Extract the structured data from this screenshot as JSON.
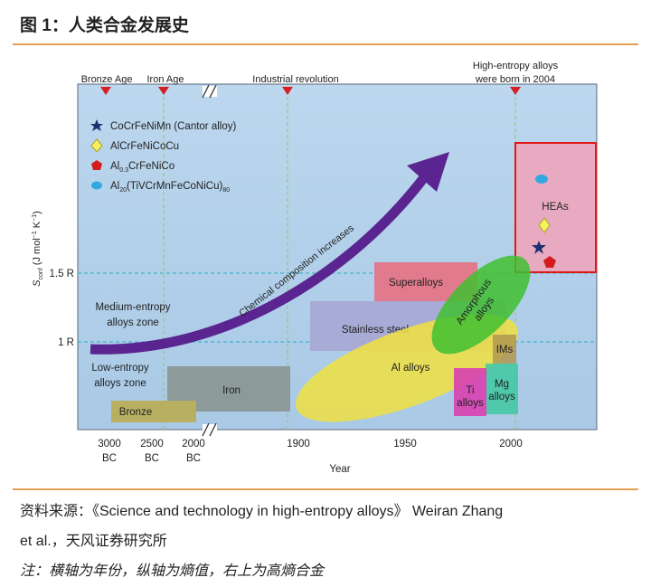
{
  "header": {
    "title": "图 1：人类合金发展史"
  },
  "figure": {
    "markers": [
      "Bronze Age",
      "Iron Age",
      "Industrial revolution",
      [
        "High-entropy alloys",
        "were born in 2004"
      ]
    ],
    "y_axis": {
      "label": [
        "S",
        "conf",
        " (J mol",
        "−1",
        " K",
        "−1",
        ")"
      ],
      "ticks": [
        "1.5 R",
        "1 R"
      ]
    },
    "x_axis": {
      "label": "Year",
      "ticks": [
        [
          "3000",
          "BC"
        ],
        [
          "2500",
          "BC"
        ],
        [
          "2000",
          "BC"
        ],
        "1900",
        "1950",
        "2000"
      ]
    },
    "legend": [
      [
        "CoCrFeNiMn (Cantor alloy)"
      ],
      [
        "AlCrFeNiCoCu"
      ],
      [
        "Al",
        "0.3",
        "CrFeNiCo"
      ],
      [
        "Al",
        "20",
        "(TiVCrMnFeCoNiCu)",
        "80"
      ]
    ],
    "arrow_label": "Chemical composition increases",
    "zones": [
      [
        "Medium-entropy",
        "alloys zone"
      ],
      [
        "Low-entropy",
        "alloys zone"
      ]
    ],
    "regions": {
      "heas": "HEAs",
      "superalloys": "Superalloys",
      "amorphous": [
        "Amorphous",
        "alloys"
      ],
      "stainless": "Stainless steel",
      "al": "Al alloys",
      "ims": "IMs",
      "ti": [
        "Ti",
        "alloys"
      ],
      "mg": [
        "Mg",
        "alloys"
      ],
      "iron": "Iron",
      "bronze": "Bronze"
    }
  },
  "footer": {
    "source": [
      "资料来源：《Science and technology in high-entropy alloys》 Weiran Zhang",
      "et al.，天风证券研究所"
    ],
    "note": "注：横轴为年份，纵轴为熵值，右上为高熵合金"
  }
}
